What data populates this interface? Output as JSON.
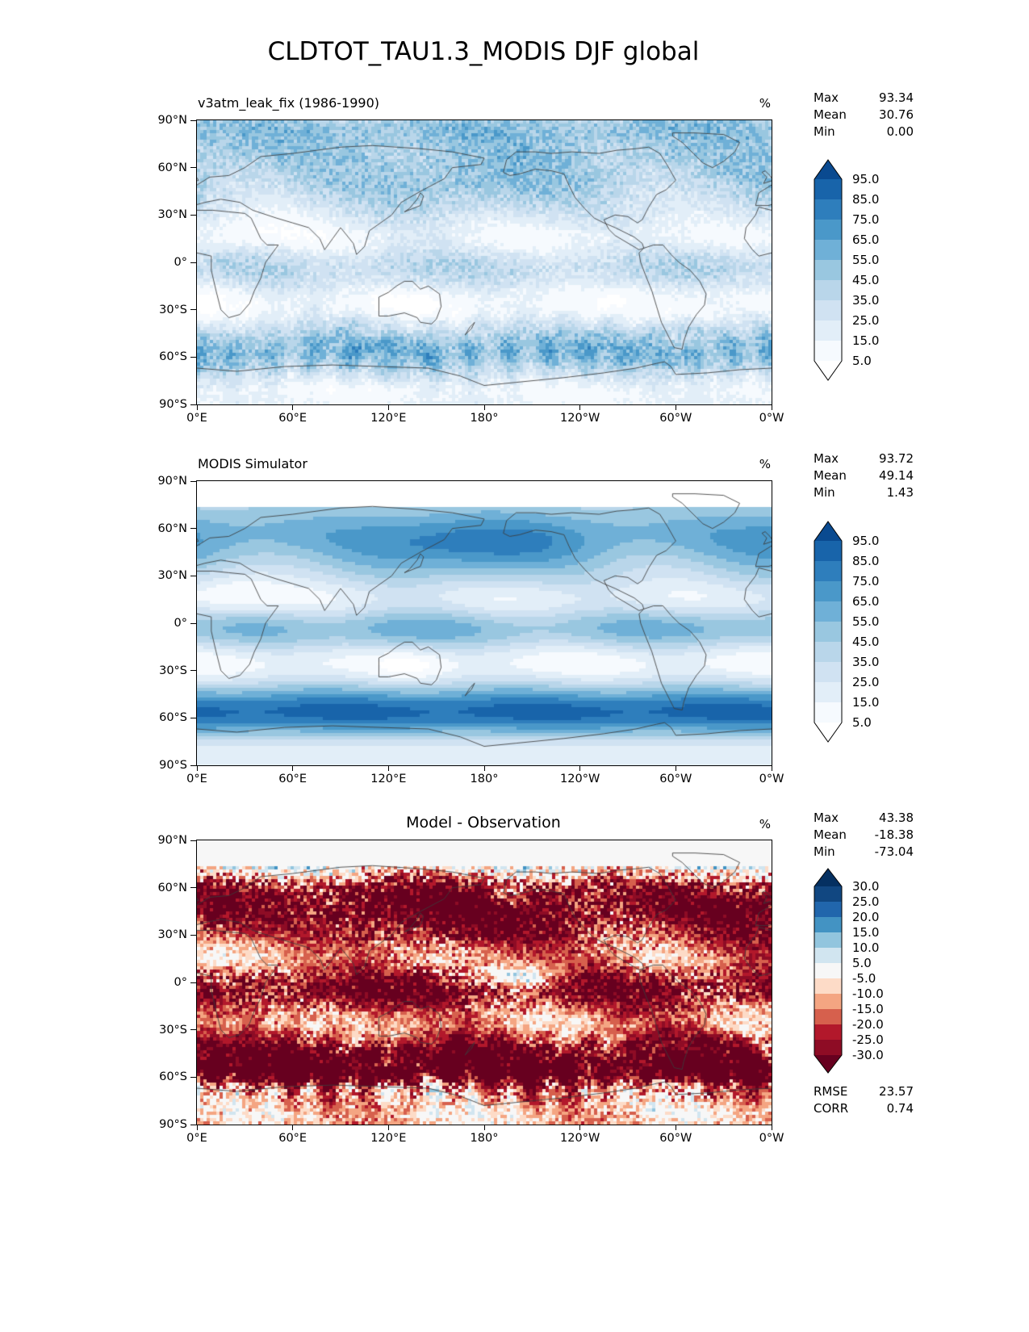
{
  "figure": {
    "title": "CLDTOT_TAU1.3_MODIS DJF global"
  },
  "axes": {
    "y_ticks": [
      "90°N",
      "60°N",
      "30°N",
      "0°",
      "30°S",
      "60°S",
      "90°S"
    ],
    "x_ticks": [
      "0°E",
      "60°E",
      "120°E",
      "180°",
      "120°W",
      "60°W",
      "0°W"
    ]
  },
  "panels": [
    {
      "id": "model",
      "title": "v3atm_leak_fix (1986-1990)",
      "unit": "%",
      "stats": {
        "max": {
          "label": "Max",
          "value": "93.34"
        },
        "mean": {
          "label": "Mean",
          "value": "30.76"
        },
        "min": {
          "label": "Min",
          "value": "0.00"
        }
      },
      "colorbar": {
        "levels": [
          5,
          15,
          25,
          35,
          45,
          55,
          65,
          75,
          85,
          95
        ],
        "colors_by_value": [
          "#ffffff",
          "#f6fafe",
          "#e2eef8",
          "#d0e2f2",
          "#b9d6ea",
          "#99c7e0",
          "#6fb0d7",
          "#4a98c9",
          "#2e7ebc",
          "#1864aa",
          "#0a4a90"
        ],
        "tick_labels": [
          "95.0",
          "85.0",
          "75.0",
          "65.0",
          "55.0",
          "45.0",
          "35.0",
          "25.0",
          "15.0",
          "5.0"
        ]
      }
    },
    {
      "id": "obs",
      "title": "MODIS Simulator",
      "unit": "%",
      "stats": {
        "max": {
          "label": "Max",
          "value": "93.72"
        },
        "mean": {
          "label": "Mean",
          "value": "49.14"
        },
        "min": {
          "label": "Min",
          "value": "1.43"
        }
      },
      "colorbar": {
        "levels": [
          5,
          15,
          25,
          35,
          45,
          55,
          65,
          75,
          85,
          95
        ],
        "colors_by_value": [
          "#ffffff",
          "#f6fafe",
          "#e2eef8",
          "#d0e2f2",
          "#b9d6ea",
          "#99c7e0",
          "#6fb0d7",
          "#4a98c9",
          "#2e7ebc",
          "#1864aa",
          "#0a4a90"
        ],
        "tick_labels": [
          "95.0",
          "85.0",
          "75.0",
          "65.0",
          "55.0",
          "45.0",
          "35.0",
          "25.0",
          "15.0",
          "5.0"
        ]
      }
    },
    {
      "id": "diff",
      "title": "Model - Observation",
      "unit": "%",
      "stats": {
        "max": {
          "label": "Max",
          "value": "43.38"
        },
        "mean": {
          "label": "Mean",
          "value": "-18.38"
        },
        "min": {
          "label": "Min",
          "value": "-73.04"
        }
      },
      "colorbar": {
        "levels": [
          -30,
          -25,
          -20,
          -15,
          -10,
          -5,
          5,
          10,
          15,
          20,
          25,
          30
        ],
        "colors_by_value": [
          "#67001f",
          "#8e0c25",
          "#b2182b",
          "#d6604d",
          "#f4a582",
          "#fddbc7",
          "#f7f7f7",
          "#d1e5f0",
          "#92c5de",
          "#4393c3",
          "#2166ac",
          "#114781",
          "#053061"
        ],
        "tick_labels": [
          "30.0",
          "25.0",
          "20.0",
          "15.0",
          "10.0",
          "5.0",
          "-5.0",
          "-10.0",
          "-15.0",
          "-20.0",
          "-25.0",
          "-30.0"
        ]
      },
      "extra_stats": [
        {
          "label": "RMSE",
          "value": "23.57"
        },
        {
          "label": "CORR",
          "value": "0.74"
        }
      ]
    }
  ],
  "chart_data": [
    {
      "type": "heatmap",
      "projection": "equirectangular global map",
      "title": "v3atm_leak_fix (1986-1990)",
      "variable": "CLDTOT_TAU1.3_MODIS total cloud fraction",
      "season": "DJF",
      "units": "%",
      "stats": {
        "max": 93.34,
        "mean": 30.76,
        "min": 0.0
      },
      "levels": [
        5,
        15,
        25,
        35,
        45,
        55,
        65,
        75,
        85,
        95
      ],
      "palette": "Blues (white low, dark navy high), arrow over/under ends",
      "x_tick_labels": [
        "0°E",
        "60°E",
        "120°E",
        "180°",
        "120°W",
        "60°W",
        "0°W"
      ],
      "y_tick_labels": [
        "90°N",
        "60°N",
        "30°N",
        "0°",
        "30°S",
        "60°S",
        "90°S"
      ],
      "zonal_mean_estimate": {
        "lat": [
          -90,
          -75,
          -60,
          -45,
          -30,
          -15,
          0,
          15,
          30,
          45,
          60,
          75,
          90
        ],
        "value": [
          20,
          35,
          60,
          55,
          35,
          30,
          40,
          25,
          30,
          40,
          50,
          55,
          55
        ]
      },
      "notes": "speckled native-grid field; cloudy storm-track bands, clearer subtropics"
    },
    {
      "type": "heatmap",
      "projection": "equirectangular global map",
      "title": "MODIS Simulator",
      "variable": "CLDTOT_TAU1.3_MODIS total cloud fraction",
      "season": "DJF",
      "units": "%",
      "stats": {
        "max": 93.72,
        "mean": 49.14,
        "min": 1.43
      },
      "levels": [
        5,
        15,
        25,
        35,
        45,
        55,
        65,
        75,
        85,
        95
      ],
      "palette": "Blues (white low, dark navy high), arrow over/under ends",
      "x_tick_labels": [
        "0°E",
        "60°E",
        "120°E",
        "180°",
        "120°W",
        "60°W",
        "0°W"
      ],
      "y_tick_labels": [
        "90°N",
        "60°N",
        "30°N",
        "0°",
        "30°S",
        "60°S",
        "90°S"
      ],
      "zonal_mean_estimate": {
        "lat": [
          -90,
          -75,
          -60,
          -45,
          -30,
          -15,
          0,
          15,
          30,
          45,
          60,
          75,
          90
        ],
        "value": [
          18,
          45,
          88,
          80,
          55,
          45,
          55,
          40,
          45,
          65,
          75,
          10,
          5
        ]
      },
      "notes": "smooth observed field; very cloudy Southern Ocean, no data white band poleward of ~75N"
    },
    {
      "type": "heatmap",
      "projection": "equirectangular global map",
      "title": "Model - Observation",
      "variable": "difference in total cloud fraction",
      "season": "DJF",
      "units": "%",
      "stats": {
        "max": 43.38,
        "mean": -18.38,
        "min": -73.04
      },
      "rmse": 23.57,
      "corr": 0.74,
      "levels": [
        -30,
        -25,
        -20,
        -15,
        -10,
        -5,
        5,
        10,
        15,
        20,
        25,
        30
      ],
      "palette": "RdBu diverging (dark red negative, white near zero, dark blue positive), arrow ends",
      "x_tick_labels": [
        "0°E",
        "60°E",
        "120°E",
        "180°",
        "120°W",
        "60°W",
        "0°W"
      ],
      "y_tick_labels": [
        "90°N",
        "60°N",
        "30°N",
        "0°",
        "30°S",
        "60°S",
        "90°S"
      ],
      "zonal_mean_estimate": {
        "lat": [
          -90,
          -75,
          -60,
          -45,
          -30,
          -15,
          0,
          15,
          30,
          45,
          60,
          75,
          90
        ],
        "value": [
          5,
          0,
          -15,
          -25,
          -25,
          -18,
          -15,
          -18,
          -20,
          -25,
          -18,
          -5,
          0
        ]
      },
      "notes": "predominantly negative (red) bias nearly everywhere; scattered positive (blue) patches near Antarctic coast, equatorial Pacific and high northern latitudes"
    }
  ]
}
